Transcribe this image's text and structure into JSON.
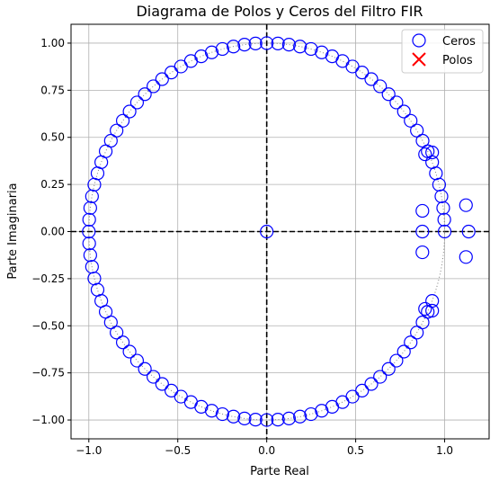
{
  "chart_data": {
    "type": "scatter",
    "title": "Diagrama de Polos y Ceros del Filtro FIR",
    "xlabel": "Parte Real",
    "ylabel": "Parte Imaginaria",
    "xlim": [
      -1.1,
      1.25
    ],
    "ylim": [
      -1.1,
      1.1
    ],
    "xticks": [
      -1.0,
      -0.5,
      0.0,
      0.5,
      1.0
    ],
    "xtick_labels": [
      "−1.0",
      "−0.5",
      "0.0",
      "0.5",
      "1.0"
    ],
    "yticks": [
      1.0,
      0.75,
      0.5,
      0.25,
      0.0,
      -0.25,
      -0.5,
      -0.75,
      -1.0
    ],
    "ytick_labels": [
      "1.00",
      "0.75",
      "0.50",
      "0.25",
      "0.00",
      "−0.25",
      "−0.50",
      "−0.75",
      "−1.00"
    ],
    "grid": true,
    "legend_position": "top-right",
    "unit_circle": {
      "style": "dotted",
      "color": "#808080"
    },
    "reference_lines": {
      "x": 0,
      "y": 0,
      "style": "dashed",
      "color": "#000000"
    },
    "series": [
      {
        "name": "Ceros",
        "marker": "hollow-circle",
        "color": "#0000ff",
        "points": [
          [
            1.0,
            0.0
          ],
          [
            0.998,
            0.063
          ],
          [
            0.992,
            0.125
          ],
          [
            0.982,
            0.187
          ],
          [
            0.969,
            0.249
          ],
          [
            0.951,
            0.309
          ],
          [
            0.93,
            0.368
          ],
          [
            0.905,
            0.426
          ],
          [
            0.876,
            0.482
          ],
          [
            0.844,
            0.536
          ],
          [
            0.809,
            0.588
          ],
          [
            0.771,
            0.637
          ],
          [
            0.729,
            0.685
          ],
          [
            0.685,
            0.729
          ],
          [
            0.637,
            0.771
          ],
          [
            0.588,
            0.809
          ],
          [
            0.536,
            0.844
          ],
          [
            0.482,
            0.876
          ],
          [
            0.426,
            0.905
          ],
          [
            0.368,
            0.93
          ],
          [
            0.309,
            0.951
          ],
          [
            0.249,
            0.969
          ],
          [
            0.187,
            0.982
          ],
          [
            0.125,
            0.992
          ],
          [
            0.063,
            0.998
          ],
          [
            0.0,
            1.0
          ],
          [
            -0.063,
            0.998
          ],
          [
            -0.125,
            0.992
          ],
          [
            -0.187,
            0.982
          ],
          [
            -0.249,
            0.969
          ],
          [
            -0.309,
            0.951
          ],
          [
            -0.368,
            0.93
          ],
          [
            -0.426,
            0.905
          ],
          [
            -0.482,
            0.876
          ],
          [
            -0.536,
            0.844
          ],
          [
            -0.588,
            0.809
          ],
          [
            -0.637,
            0.771
          ],
          [
            -0.685,
            0.729
          ],
          [
            -0.729,
            0.685
          ],
          [
            -0.771,
            0.637
          ],
          [
            -0.809,
            0.588
          ],
          [
            -0.844,
            0.536
          ],
          [
            -0.876,
            0.482
          ],
          [
            -0.905,
            0.426
          ],
          [
            -0.93,
            0.368
          ],
          [
            -0.951,
            0.309
          ],
          [
            -0.969,
            0.249
          ],
          [
            -0.982,
            0.187
          ],
          [
            -0.992,
            0.125
          ],
          [
            -0.998,
            0.063
          ],
          [
            -1.0,
            0.0
          ],
          [
            -0.998,
            -0.063
          ],
          [
            -0.992,
            -0.125
          ],
          [
            -0.982,
            -0.187
          ],
          [
            -0.969,
            -0.249
          ],
          [
            -0.951,
            -0.309
          ],
          [
            -0.93,
            -0.368
          ],
          [
            -0.905,
            -0.426
          ],
          [
            -0.876,
            -0.482
          ],
          [
            -0.844,
            -0.536
          ],
          [
            -0.809,
            -0.588
          ],
          [
            -0.771,
            -0.637
          ],
          [
            -0.729,
            -0.685
          ],
          [
            -0.685,
            -0.729
          ],
          [
            -0.637,
            -0.771
          ],
          [
            -0.588,
            -0.809
          ],
          [
            -0.536,
            -0.844
          ],
          [
            -0.482,
            -0.876
          ],
          [
            -0.426,
            -0.905
          ],
          [
            -0.368,
            -0.93
          ],
          [
            -0.309,
            -0.951
          ],
          [
            -0.249,
            -0.969
          ],
          [
            -0.187,
            -0.982
          ],
          [
            -0.125,
            -0.992
          ],
          [
            -0.063,
            -0.998
          ],
          [
            0.0,
            -1.0
          ],
          [
            0.063,
            -0.998
          ],
          [
            0.125,
            -0.992
          ],
          [
            0.187,
            -0.982
          ],
          [
            0.249,
            -0.969
          ],
          [
            0.309,
            -0.951
          ],
          [
            0.368,
            -0.93
          ],
          [
            0.426,
            -0.905
          ],
          [
            0.482,
            -0.876
          ],
          [
            0.536,
            -0.844
          ],
          [
            0.588,
            -0.809
          ],
          [
            0.637,
            -0.771
          ],
          [
            0.685,
            -0.729
          ],
          [
            0.729,
            -0.685
          ],
          [
            0.771,
            -0.637
          ],
          [
            0.809,
            -0.588
          ],
          [
            0.844,
            -0.536
          ],
          [
            0.876,
            -0.482
          ],
          [
            0.905,
            -0.426
          ],
          [
            0.93,
            -0.368
          ],
          [
            0.0,
            0.0
          ],
          [
            0.93,
            0.42
          ],
          [
            0.93,
            -0.42
          ],
          [
            0.89,
            0.41
          ],
          [
            0.89,
            -0.41
          ],
          [
            0.875,
            0.11
          ],
          [
            0.875,
            0.0
          ],
          [
            0.875,
            -0.11
          ],
          [
            1.12,
            0.14
          ],
          [
            1.135,
            0.0
          ],
          [
            1.12,
            -0.135
          ]
        ]
      },
      {
        "name": "Polos",
        "marker": "x",
        "color": "#ff0000",
        "points": []
      }
    ]
  }
}
